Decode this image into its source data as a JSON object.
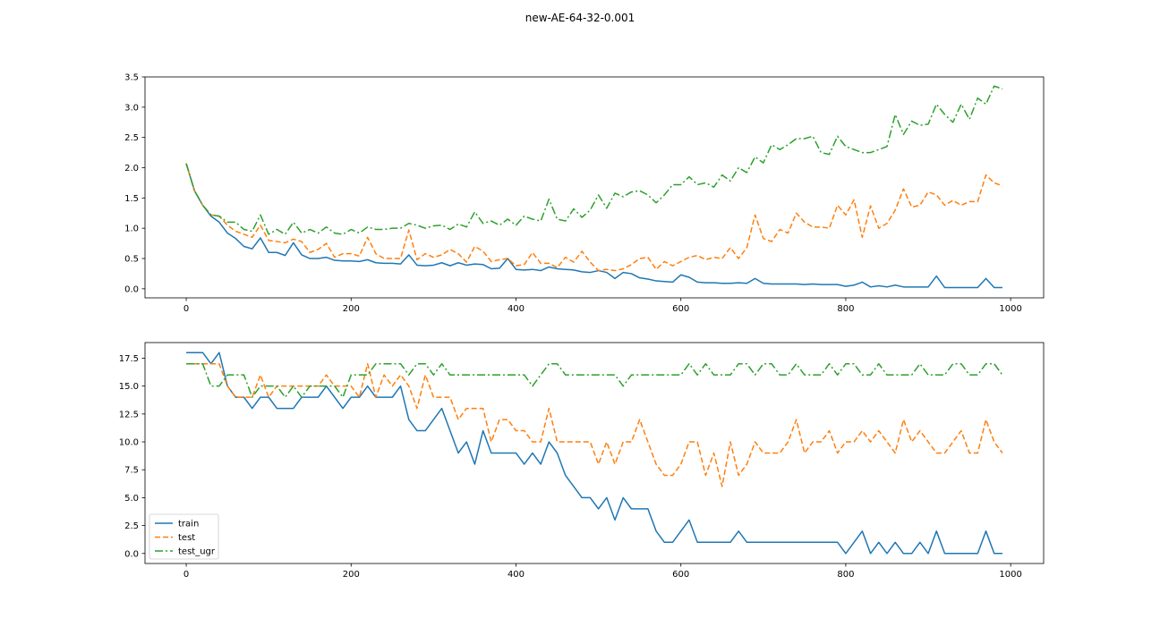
{
  "title": "new-AE-64-32-0.001",
  "colors": {
    "train": "#1f77b4",
    "test": "#ff7f0e",
    "test_ugr": "#2ca02c"
  },
  "chart_data": [
    {
      "type": "line",
      "xlim": [
        -50,
        1040
      ],
      "ylim": [
        -0.15,
        3.5
      ],
      "xticks": [
        0,
        200,
        400,
        600,
        800,
        1000
      ],
      "yticks": [
        0.0,
        0.5,
        1.0,
        1.5,
        2.0,
        2.5,
        3.0,
        3.5
      ],
      "ytick_labels": [
        "0.0",
        "0.5",
        "1.0",
        "1.5",
        "2.0",
        "2.5",
        "3.0",
        "3.5"
      ],
      "x": [
        0,
        10,
        20,
        30,
        40,
        50,
        60,
        70,
        80,
        90,
        100,
        110,
        120,
        130,
        140,
        150,
        160,
        170,
        180,
        190,
        200,
        210,
        220,
        230,
        240,
        250,
        260,
        270,
        280,
        290,
        300,
        310,
        320,
        330,
        340,
        350,
        360,
        370,
        380,
        390,
        400,
        410,
        420,
        430,
        440,
        450,
        460,
        470,
        480,
        490,
        500,
        510,
        520,
        530,
        540,
        550,
        560,
        570,
        580,
        590,
        600,
        610,
        620,
        630,
        640,
        650,
        660,
        670,
        680,
        690,
        700,
        710,
        720,
        730,
        740,
        750,
        760,
        770,
        780,
        790,
        800,
        810,
        820,
        830,
        840,
        850,
        860,
        870,
        880,
        890,
        900,
        910,
        920,
        930,
        940,
        950,
        960,
        970,
        980,
        990
      ],
      "series": [
        {
          "name": "train",
          "style": "solid",
          "values": [
            2.07,
            1.62,
            1.38,
            1.2,
            1.1,
            0.92,
            0.83,
            0.7,
            0.66,
            0.84,
            0.6,
            0.6,
            0.55,
            0.76,
            0.56,
            0.5,
            0.5,
            0.52,
            0.47,
            0.46,
            0.46,
            0.45,
            0.48,
            0.43,
            0.42,
            0.42,
            0.41,
            0.56,
            0.39,
            0.38,
            0.39,
            0.43,
            0.38,
            0.43,
            0.39,
            0.41,
            0.4,
            0.33,
            0.34,
            0.5,
            0.32,
            0.31,
            0.32,
            0.3,
            0.36,
            0.33,
            0.32,
            0.31,
            0.28,
            0.27,
            0.3,
            0.27,
            0.17,
            0.27,
            0.25,
            0.18,
            0.16,
            0.13,
            0.12,
            0.11,
            0.23,
            0.19,
            0.11,
            0.1,
            0.1,
            0.09,
            0.09,
            0.1,
            0.09,
            0.17,
            0.09,
            0.08,
            0.08,
            0.08,
            0.08,
            0.07,
            0.08,
            0.07,
            0.07,
            0.07,
            0.04,
            0.06,
            0.11,
            0.03,
            0.05,
            0.03,
            0.06,
            0.03,
            0.03,
            0.03,
            0.03,
            0.21,
            0.02,
            0.02,
            0.02,
            0.02,
            0.02,
            0.17,
            0.02,
            0.02
          ]
        },
        {
          "name": "test",
          "style": "dashed",
          "values": [
            2.07,
            1.62,
            1.38,
            1.22,
            1.2,
            1.05,
            0.95,
            0.9,
            0.85,
            1.05,
            0.8,
            0.78,
            0.76,
            0.82,
            0.78,
            0.6,
            0.65,
            0.75,
            0.52,
            0.58,
            0.58,
            0.54,
            0.85,
            0.58,
            0.5,
            0.5,
            0.5,
            0.97,
            0.48,
            0.58,
            0.52,
            0.56,
            0.65,
            0.58,
            0.44,
            0.7,
            0.62,
            0.45,
            0.48,
            0.5,
            0.38,
            0.4,
            0.6,
            0.42,
            0.42,
            0.35,
            0.52,
            0.44,
            0.62,
            0.44,
            0.3,
            0.32,
            0.3,
            0.33,
            0.4,
            0.5,
            0.52,
            0.32,
            0.45,
            0.38,
            0.45,
            0.52,
            0.55,
            0.48,
            0.52,
            0.5,
            0.68,
            0.5,
            0.68,
            1.22,
            0.83,
            0.78,
            0.98,
            0.92,
            1.25,
            1.1,
            1.02,
            1.02,
            1.0,
            1.38,
            1.22,
            1.47,
            0.85,
            1.37,
            1.0,
            1.08,
            1.3,
            1.65,
            1.35,
            1.38,
            1.6,
            1.55,
            1.38,
            1.46,
            1.38,
            1.44,
            1.44,
            1.88,
            1.75,
            1.7
          ]
        },
        {
          "name": "test_ugr",
          "style": "dashdot",
          "values": [
            2.07,
            1.62,
            1.38,
            1.22,
            1.2,
            1.1,
            1.1,
            0.98,
            0.95,
            1.22,
            0.9,
            0.98,
            0.9,
            1.1,
            0.92,
            0.98,
            0.92,
            1.02,
            0.92,
            0.9,
            0.98,
            0.92,
            1.02,
            0.98,
            0.98,
            1.0,
            1.0,
            1.08,
            1.05,
            1.0,
            1.04,
            1.05,
            0.98,
            1.07,
            1.02,
            1.27,
            1.08,
            1.12,
            1.05,
            1.15,
            1.05,
            1.2,
            1.15,
            1.12,
            1.48,
            1.15,
            1.12,
            1.32,
            1.18,
            1.3,
            1.55,
            1.33,
            1.58,
            1.52,
            1.6,
            1.62,
            1.55,
            1.42,
            1.55,
            1.72,
            1.72,
            1.85,
            1.72,
            1.75,
            1.68,
            1.88,
            1.78,
            2.0,
            1.92,
            2.18,
            2.08,
            2.38,
            2.3,
            2.38,
            2.48,
            2.48,
            2.52,
            2.25,
            2.22,
            2.52,
            2.35,
            2.3,
            2.25,
            2.25,
            2.3,
            2.35,
            2.88,
            2.55,
            2.77,
            2.7,
            2.72,
            3.05,
            2.88,
            2.75,
            3.05,
            2.8,
            3.15,
            3.05,
            3.35,
            3.3
          ]
        }
      ]
    },
    {
      "type": "line",
      "xlim": [
        -50,
        1040
      ],
      "ylim": [
        -0.9,
        18.9
      ],
      "xticks": [
        0,
        200,
        400,
        600,
        800,
        1000
      ],
      "yticks": [
        0.0,
        2.5,
        5.0,
        7.5,
        10.0,
        12.5,
        15.0,
        17.5
      ],
      "ytick_labels": [
        "0.0",
        "2.5",
        "5.0",
        "7.5",
        "10.0",
        "12.5",
        "15.0",
        "17.5"
      ],
      "legend": {
        "position": "lower-left",
        "entries": [
          "train",
          "test",
          "test_ugr"
        ]
      },
      "x": [
        0,
        10,
        20,
        30,
        40,
        50,
        60,
        70,
        80,
        90,
        100,
        110,
        120,
        130,
        140,
        150,
        160,
        170,
        180,
        190,
        200,
        210,
        220,
        230,
        240,
        250,
        260,
        270,
        280,
        290,
        300,
        310,
        320,
        330,
        340,
        350,
        360,
        370,
        380,
        390,
        400,
        410,
        420,
        430,
        440,
        450,
        460,
        470,
        480,
        490,
        500,
        510,
        520,
        530,
        540,
        550,
        560,
        570,
        580,
        590,
        600,
        610,
        620,
        630,
        640,
        650,
        660,
        670,
        680,
        690,
        700,
        710,
        720,
        730,
        740,
        750,
        760,
        770,
        780,
        790,
        800,
        810,
        820,
        830,
        840,
        850,
        860,
        870,
        880,
        890,
        900,
        910,
        920,
        930,
        940,
        950,
        960,
        970,
        980,
        990
      ],
      "series": [
        {
          "name": "train",
          "style": "solid",
          "values": [
            18,
            18,
            18,
            17,
            18,
            15,
            14,
            14,
            13,
            14,
            14,
            13,
            13,
            13,
            14,
            14,
            14,
            15,
            14,
            13,
            14,
            14,
            15,
            14,
            14,
            14,
            15,
            12,
            11,
            11,
            12,
            13,
            11,
            9,
            10,
            8,
            11,
            9,
            9,
            9,
            9,
            8,
            9,
            8,
            10,
            9,
            7,
            6,
            5,
            5,
            4,
            5,
            3,
            5,
            4,
            4,
            4,
            2,
            1,
            1,
            2,
            3,
            1,
            1,
            1,
            1,
            1,
            2,
            1,
            1,
            1,
            1,
            1,
            1,
            1,
            1,
            1,
            1,
            1,
            1,
            0,
            1,
            2,
            0,
            1,
            0,
            1,
            0,
            0,
            1,
            0,
            2,
            0,
            0,
            0,
            0,
            0,
            2,
            0,
            0
          ]
        },
        {
          "name": "test",
          "style": "dashed",
          "values": [
            17,
            17,
            17,
            17,
            17,
            15,
            14,
            14,
            14,
            16,
            14,
            15,
            15,
            15,
            15,
            15,
            15,
            16,
            15,
            15,
            15,
            14,
            17,
            14,
            16,
            15,
            16,
            15,
            13,
            16,
            14,
            14,
            14,
            12,
            13,
            13,
            13,
            10,
            12,
            12,
            11,
            11,
            10,
            10,
            13,
            10,
            10,
            10,
            10,
            10,
            8,
            10,
            8,
            10,
            10,
            12,
            10,
            8,
            7,
            7,
            8,
            10,
            10,
            7,
            9,
            6,
            10,
            7,
            8,
            10,
            9,
            9,
            9,
            10,
            12,
            9,
            10,
            10,
            11,
            9,
            10,
            10,
            11,
            10,
            11,
            10,
            9,
            12,
            10,
            11,
            10,
            9,
            9,
            10,
            11,
            9,
            9,
            12,
            10,
            9
          ]
        },
        {
          "name": "test_ugr",
          "style": "dashdot",
          "values": [
            17,
            17,
            17,
            15,
            15,
            16,
            16,
            16,
            14,
            15,
            15,
            15,
            14,
            15,
            14,
            15,
            15,
            15,
            15,
            14,
            16,
            16,
            16,
            17,
            17,
            17,
            17,
            16,
            17,
            17,
            16,
            17,
            16,
            16,
            16,
            16,
            16,
            16,
            16,
            16,
            16,
            16,
            15,
            16,
            17,
            17,
            16,
            16,
            16,
            16,
            16,
            16,
            16,
            15,
            16,
            16,
            16,
            16,
            16,
            16,
            16,
            17,
            16,
            17,
            16,
            16,
            16,
            17,
            17,
            16,
            17,
            17,
            16,
            16,
            17,
            16,
            16,
            16,
            17,
            16,
            17,
            17,
            16,
            16,
            17,
            16,
            16,
            16,
            16,
            17,
            16,
            16,
            16,
            17,
            17,
            16,
            16,
            17,
            17,
            16
          ]
        }
      ]
    }
  ]
}
